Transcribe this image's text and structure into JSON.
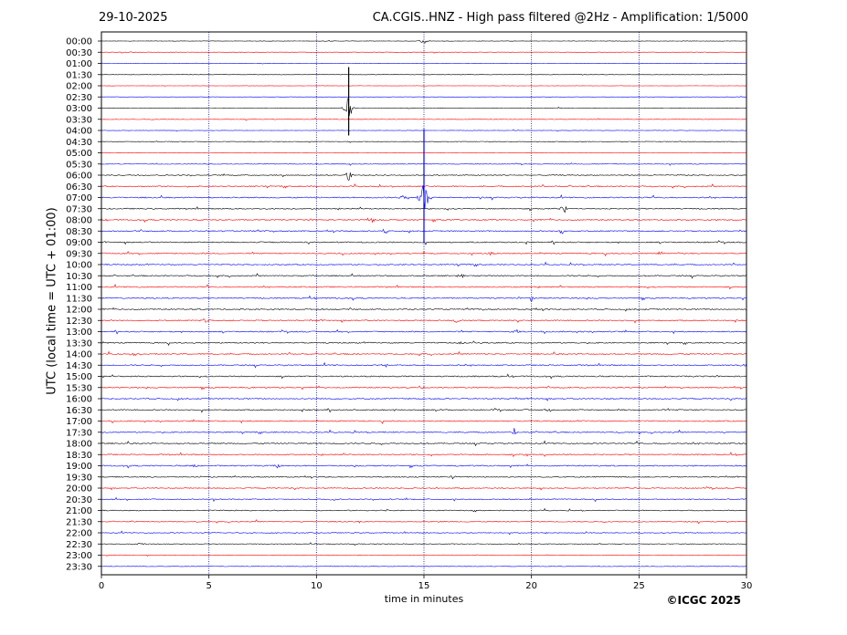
{
  "header": {
    "date": "29-10-2025",
    "title": "CA.CGIS..HNZ - High pass filtered @2Hz - Amplification: 1/5000"
  },
  "footer": {
    "copyright": "©ICGC 2025"
  },
  "colors": {
    "trace_a": "#ff0000",
    "trace_b": "#0000ff",
    "grid": "#000080",
    "axis": "#000000"
  },
  "chart_data": {
    "type": "line",
    "title": "CA.CGIS..HNZ - High pass filtered @2Hz - Amplification: 1/5000",
    "xlabel": "time in minutes",
    "ylabel": "UTC (local time = UTC + 01:00)",
    "xlim": [
      0,
      30
    ],
    "x_ticks": [
      "0",
      "5",
      "10",
      "15",
      "20",
      "25",
      "30"
    ],
    "vertical_grid_minutes": [
      5,
      10,
      15,
      20,
      25
    ],
    "grid": "vertical dotted",
    "row_labels": [
      "00:00",
      "00:30",
      "01:00",
      "01:30",
      "02:00",
      "02:30",
      "03:00",
      "03:30",
      "04:00",
      "04:30",
      "05:00",
      "05:30",
      "06:00",
      "06:30",
      "07:00",
      "07:30",
      "08:00",
      "08:30",
      "09:00",
      "09:30",
      "10:00",
      "10:30",
      "11:00",
      "11:30",
      "12:00",
      "12:30",
      "13:00",
      "13:30",
      "14:00",
      "14:30",
      "15:00",
      "15:30",
      "16:00",
      "16:30",
      "17:00",
      "17:30",
      "18:00",
      "18:30",
      "19:00",
      "19:30",
      "20:00",
      "20:30",
      "21:00",
      "21:30",
      "22:00",
      "22:30",
      "23:00",
      "23:30"
    ],
    "row_colors_cycle": [
      "#000000",
      "#ff0000",
      "#0000ff"
    ],
    "noise_level_by_row": [
      0.4,
      0.4,
      0.4,
      0.3,
      0.3,
      0.3,
      0.4,
      0.5,
      0.4,
      0.5,
      0.4,
      0.6,
      0.8,
      1.0,
      1.0,
      1.0,
      1.0,
      1.0,
      1.0,
      1.0,
      1.0,
      1.0,
      1.0,
      1.0,
      1.0,
      1.0,
      1.0,
      1.0,
      1.0,
      1.0,
      1.0,
      1.0,
      1.0,
      1.0,
      1.0,
      1.0,
      1.0,
      1.0,
      1.0,
      0.9,
      0.8,
      0.9,
      0.8,
      0.8,
      0.7,
      0.6,
      0.5,
      0.5
    ],
    "events": [
      {
        "row": 0,
        "minute": 15.0,
        "amplitude": 1.0
      },
      {
        "row": 6,
        "minute": 11.5,
        "amplitude": 3.0
      },
      {
        "row": 12,
        "minute": 11.5,
        "amplitude": 1.2
      },
      {
        "row": 14,
        "minute": 14.0,
        "amplitude": 0.6
      },
      {
        "row": 14,
        "minute": 15.0,
        "amplitude": 5.0
      },
      {
        "row": 15,
        "minute": 21.5,
        "amplitude": 0.8
      },
      {
        "row": 16,
        "minute": 12.6,
        "amplitude": 0.5
      },
      {
        "row": 17,
        "minute": 13.2,
        "amplitude": 0.6
      },
      {
        "row": 17,
        "minute": 21.4,
        "amplitude": 0.6
      },
      {
        "row": 19,
        "minute": 18.1,
        "amplitude": 0.6
      },
      {
        "row": 19,
        "minute": 26.0,
        "amplitude": 0.5
      },
      {
        "row": 21,
        "minute": 16.7,
        "amplitude": 0.6
      },
      {
        "row": 23,
        "minute": 20.0,
        "amplitude": 0.6
      },
      {
        "row": 25,
        "minute": 4.8,
        "amplitude": 0.5
      },
      {
        "row": 25,
        "minute": 16.5,
        "amplitude": 0.6
      },
      {
        "row": 26,
        "minute": 19.3,
        "amplitude": 0.5
      },
      {
        "row": 27,
        "minute": 16.7,
        "amplitude": 0.4
      },
      {
        "row": 28,
        "minute": 1.5,
        "amplitude": 0.4
      },
      {
        "row": 29,
        "minute": 13.2,
        "amplitude": 0.5
      },
      {
        "row": 29,
        "minute": 30.0,
        "amplitude": 0.5
      },
      {
        "row": 31,
        "minute": 14.8,
        "amplitude": 0.5
      },
      {
        "row": 33,
        "minute": 20.8,
        "amplitude": 0.4
      },
      {
        "row": 35,
        "minute": 19.2,
        "amplitude": 0.5
      },
      {
        "row": 37,
        "minute": 19.8,
        "amplitude": 0.5
      },
      {
        "row": 38,
        "minute": 8.2,
        "amplitude": 0.4
      },
      {
        "row": 38,
        "minute": 4.3,
        "amplitude": 0.4
      },
      {
        "row": 39,
        "minute": 16.3,
        "amplitude": 0.4
      },
      {
        "row": 41,
        "minute": 10.8,
        "amplitude": 0.3
      },
      {
        "row": 45,
        "minute": 1.8,
        "amplitude": 0.3
      }
    ]
  }
}
